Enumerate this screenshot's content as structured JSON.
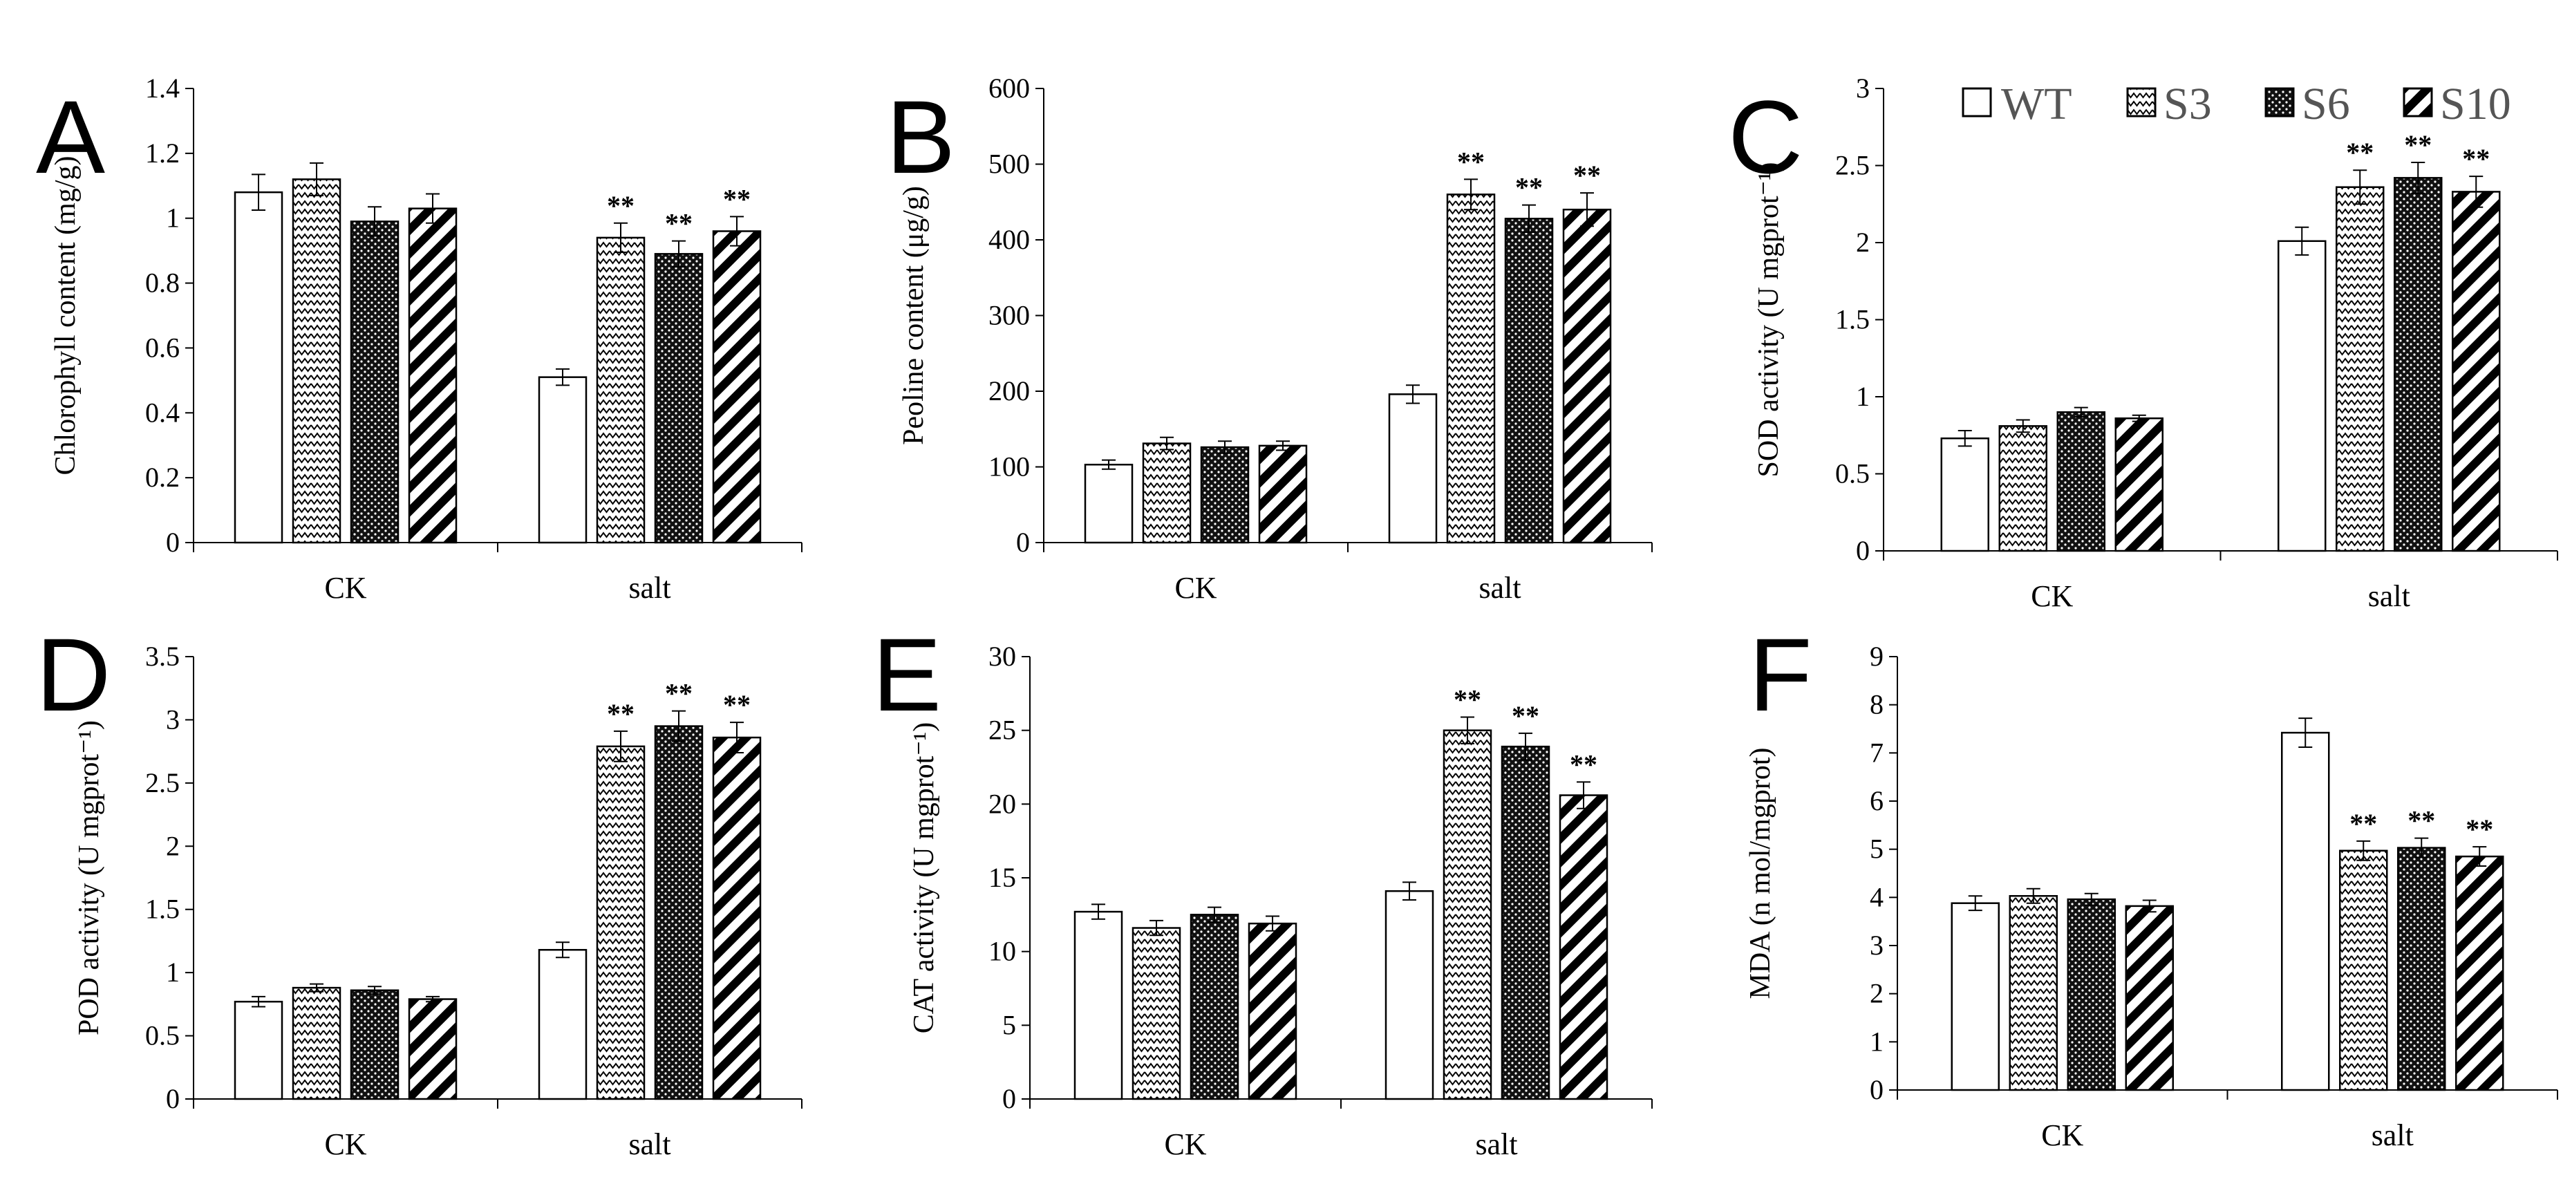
{
  "legend": [
    {
      "name": "WT",
      "pattern": "white"
    },
    {
      "name": "S3",
      "pattern": "zigzag"
    },
    {
      "name": "S6",
      "pattern": "dots"
    },
    {
      "name": "S10",
      "pattern": "diag"
    }
  ],
  "chart_data": [
    {
      "type": "bar",
      "panel": "A",
      "ylabel": "Chlorophyll content (mg/g)",
      "categories": [
        "CK",
        "salt"
      ],
      "ylim": [
        0,
        1.4
      ],
      "yticks": [
        "0",
        "0.2",
        "0.4",
        "0.6",
        "0.8",
        "1",
        "1.2",
        "1.4"
      ],
      "series": [
        {
          "name": "WT",
          "values": [
            1.08,
            0.51
          ],
          "errors": [
            0.055,
            0.025
          ]
        },
        {
          "name": "S3",
          "values": [
            1.12,
            0.94
          ],
          "errors": [
            0.05,
            0.045
          ]
        },
        {
          "name": "S6",
          "values": [
            0.99,
            0.89
          ],
          "errors": [
            0.045,
            0.04
          ]
        },
        {
          "name": "S10",
          "values": [
            1.03,
            0.96
          ],
          "errors": [
            0.045,
            0.045
          ]
        }
      ],
      "significance": [
        [
          "",
          ""
        ],
        [
          "",
          "**"
        ],
        [
          "",
          "**"
        ],
        [
          "",
          "**"
        ]
      ]
    },
    {
      "type": "bar",
      "panel": "B",
      "ylabel": "Peoline content (μg/g)",
      "categories": [
        "CK",
        "salt"
      ],
      "ylim": [
        0,
        600
      ],
      "yticks": [
        "0",
        "100",
        "200",
        "300",
        "400",
        "500",
        "600"
      ],
      "series": [
        {
          "name": "WT",
          "values": [
            103,
            196
          ],
          "errors": [
            6,
            12
          ]
        },
        {
          "name": "S3",
          "values": [
            131,
            460
          ],
          "errors": [
            8,
            20
          ]
        },
        {
          "name": "S6",
          "values": [
            126,
            428
          ],
          "errors": [
            8,
            18
          ]
        },
        {
          "name": "S10",
          "values": [
            128,
            440
          ],
          "errors": [
            6,
            22
          ]
        }
      ],
      "significance": [
        [
          "",
          ""
        ],
        [
          "",
          "**"
        ],
        [
          "",
          "**"
        ],
        [
          "",
          "**"
        ]
      ]
    },
    {
      "type": "bar",
      "panel": "C",
      "ylabel": "SOD activity (U mgprot⁻¹)",
      "categories": [
        "CK",
        "salt"
      ],
      "ylim": [
        0,
        3
      ],
      "yticks": [
        "0",
        "0.5",
        "1",
        "1.5",
        "2",
        "2.5",
        "3"
      ],
      "series": [
        {
          "name": "WT",
          "values": [
            0.73,
            2.01
          ],
          "errors": [
            0.05,
            0.09
          ]
        },
        {
          "name": "S3",
          "values": [
            0.81,
            2.36
          ],
          "errors": [
            0.04,
            0.11
          ]
        },
        {
          "name": "S6",
          "values": [
            0.9,
            2.42
          ],
          "errors": [
            0.03,
            0.1
          ]
        },
        {
          "name": "S10",
          "values": [
            0.86,
            2.33
          ],
          "errors": [
            0.02,
            0.1
          ]
        }
      ],
      "significance": [
        [
          "",
          ""
        ],
        [
          "",
          "**"
        ],
        [
          "",
          "**"
        ],
        [
          "",
          "**"
        ]
      ]
    },
    {
      "type": "bar",
      "panel": "D",
      "ylabel": "POD activity (U mgprot⁻¹)",
      "categories": [
        "CK",
        "salt"
      ],
      "ylim": [
        0,
        3.5
      ],
      "yticks": [
        "0",
        "0.5",
        "1",
        "1.5",
        "2",
        "2.5",
        "3",
        "3.5"
      ],
      "series": [
        {
          "name": "WT",
          "values": [
            0.77,
            1.18
          ],
          "errors": [
            0.04,
            0.06
          ]
        },
        {
          "name": "S3",
          "values": [
            0.88,
            2.79
          ],
          "errors": [
            0.03,
            0.12
          ]
        },
        {
          "name": "S6",
          "values": [
            0.86,
            2.95
          ],
          "errors": [
            0.03,
            0.12
          ]
        },
        {
          "name": "S10",
          "values": [
            0.79,
            2.86
          ],
          "errors": [
            0.02,
            0.12
          ]
        }
      ],
      "significance": [
        [
          "",
          ""
        ],
        [
          "",
          "**"
        ],
        [
          "",
          "**"
        ],
        [
          "",
          "**"
        ]
      ]
    },
    {
      "type": "bar",
      "panel": "E",
      "ylabel": "CAT activity (U mgprot⁻¹)",
      "categories": [
        "CK",
        "salt"
      ],
      "ylim": [
        0,
        30
      ],
      "yticks": [
        "0",
        "5",
        "10",
        "15",
        "20",
        "25",
        "30"
      ],
      "series": [
        {
          "name": "WT",
          "values": [
            12.7,
            14.1
          ],
          "errors": [
            0.5,
            0.6
          ]
        },
        {
          "name": "S3",
          "values": [
            11.6,
            25.0
          ],
          "errors": [
            0.5,
            0.9
          ]
        },
        {
          "name": "S6",
          "values": [
            12.5,
            23.9
          ],
          "errors": [
            0.5,
            0.9
          ]
        },
        {
          "name": "S10",
          "values": [
            11.9,
            20.6
          ],
          "errors": [
            0.5,
            0.9
          ]
        }
      ],
      "significance": [
        [
          "",
          ""
        ],
        [
          "",
          "**"
        ],
        [
          "",
          "**"
        ],
        [
          "",
          "**"
        ]
      ]
    },
    {
      "type": "bar",
      "panel": "F",
      "ylabel": "MDA (n mol/mgprot)",
      "categories": [
        "CK",
        "salt"
      ],
      "ylim": [
        0,
        9
      ],
      "yticks": [
        "0",
        "1",
        "2",
        "3",
        "4",
        "5",
        "6",
        "7",
        "8",
        "9"
      ],
      "series": [
        {
          "name": "WT",
          "values": [
            3.88,
            7.42
          ],
          "errors": [
            0.15,
            0.3
          ]
        },
        {
          "name": "S3",
          "values": [
            4.03,
            4.97
          ],
          "errors": [
            0.15,
            0.2
          ]
        },
        {
          "name": "S6",
          "values": [
            3.96,
            5.03
          ],
          "errors": [
            0.12,
            0.2
          ]
        },
        {
          "name": "S10",
          "values": [
            3.82,
            4.85
          ],
          "errors": [
            0.12,
            0.2
          ]
        }
      ],
      "significance": [
        [
          "",
          ""
        ],
        [
          "",
          "**"
        ],
        [
          "",
          "**"
        ],
        [
          "",
          "**"
        ]
      ]
    }
  ]
}
